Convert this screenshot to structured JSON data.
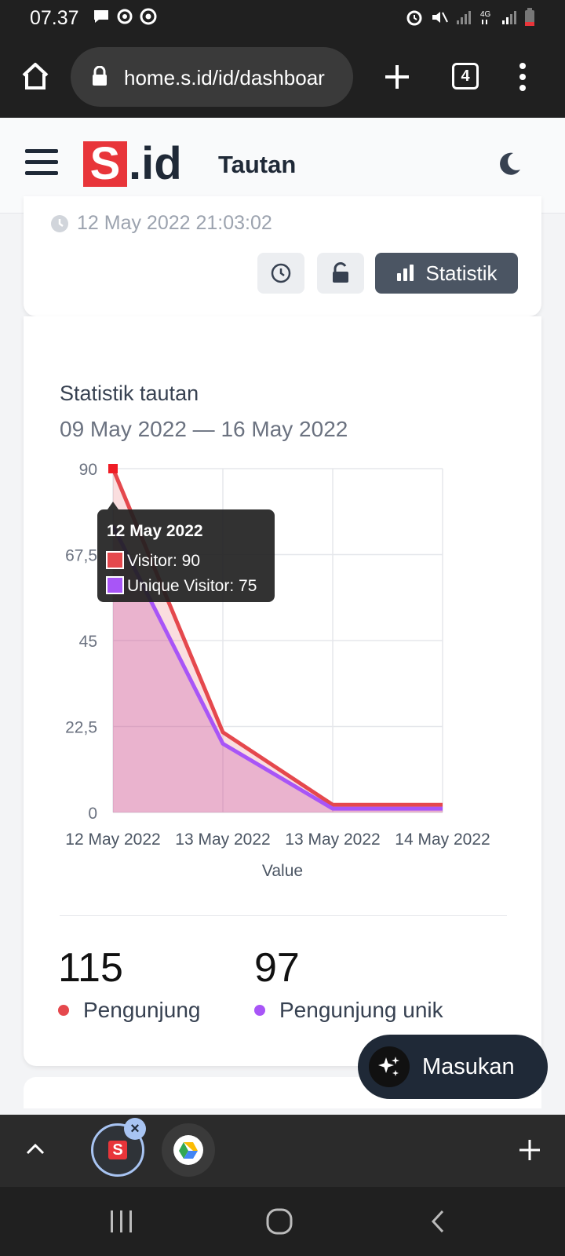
{
  "statusbar": {
    "time": "07.37"
  },
  "browser": {
    "url": "home.s.id/id/dashboar",
    "tab_count": "4"
  },
  "header": {
    "logo_s": "S",
    "logo_id": ".id",
    "title": "Tautan"
  },
  "link_card": {
    "datetime": "12 May 2022 21:03:02",
    "stat_button": "Statistik"
  },
  "stats_card": {
    "title": "Statistik tautan",
    "range": "09 May 2022 — 16 May 2022",
    "total_visitors": "115",
    "total_visitors_label": "Pengunjung",
    "unique_visitors": "97",
    "unique_visitors_label": "Pengunjung unik"
  },
  "chart_data": {
    "type": "line",
    "categories": [
      "12 May 2022",
      "13 May 2022",
      "13 May 2022",
      "14 May 2022"
    ],
    "series": [
      {
        "name": "Visitor",
        "values": [
          90,
          21,
          2,
          2
        ],
        "color": "#e5484d"
      },
      {
        "name": "Unique Visitor",
        "values": [
          75,
          18,
          1,
          1
        ],
        "color": "#a855f7"
      }
    ],
    "yticks": [
      "0",
      "22,5",
      "45",
      "67,5",
      "90"
    ],
    "ylim": [
      0,
      90
    ],
    "xlabel": "Value",
    "grid": true,
    "tooltip": {
      "title": "12 May 2022",
      "lines": [
        "Visitor: 90",
        "Unique Visitor: 75"
      ]
    }
  },
  "fab": {
    "label": "Masukan"
  },
  "colors": {
    "brand_red": "#e8353a",
    "visitor": "#e5484d",
    "unique": "#a855f7"
  }
}
